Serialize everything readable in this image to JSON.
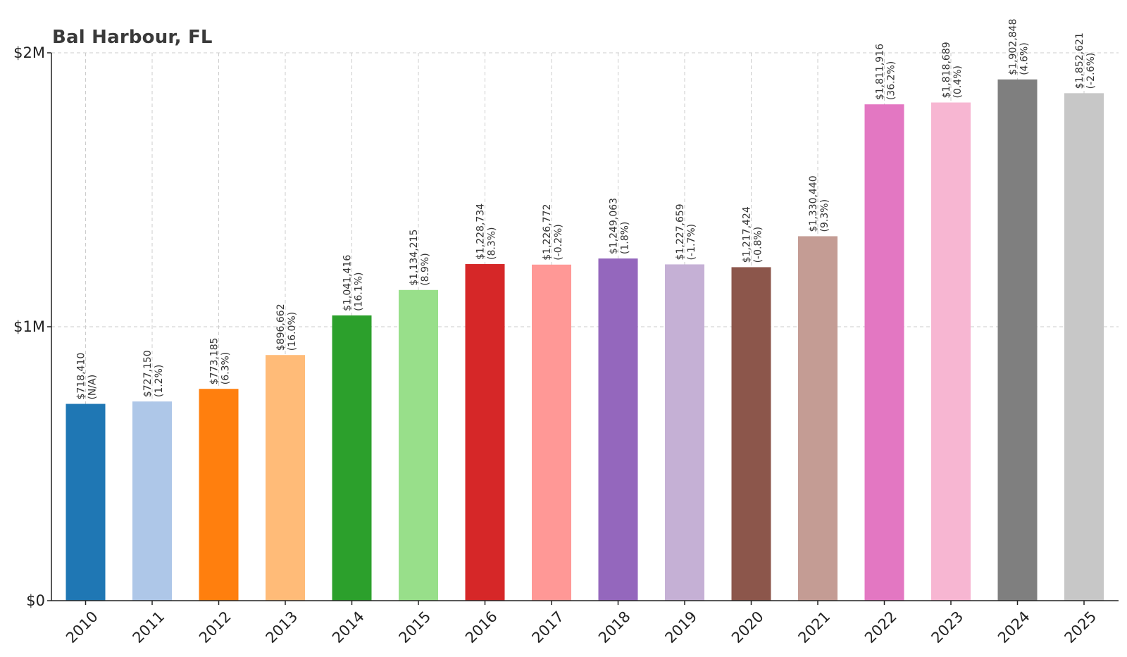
{
  "chart_data": {
    "type": "bar",
    "title": "Bal Harbour, FL",
    "xlabel": "",
    "ylabel": "",
    "ylim": [
      0,
      2000000
    ],
    "yticks": [
      {
        "value": 0,
        "label": "$0"
      },
      {
        "value": 1000000,
        "label": "$1M"
      },
      {
        "value": 2000000,
        "label": "$2M"
      }
    ],
    "grid": true,
    "categories": [
      "2010",
      "2011",
      "2012",
      "2013",
      "2014",
      "2015",
      "2016",
      "2017",
      "2018",
      "2019",
      "2020",
      "2021",
      "2022",
      "2023",
      "2024",
      "2025"
    ],
    "values": [
      718410,
      727150,
      773185,
      896662,
      1041416,
      1134215,
      1228734,
      1226772,
      1249063,
      1227659,
      1217424,
      1330440,
      1811916,
      1818689,
      1902848,
      1852621
    ],
    "value_labels": [
      "$718,410",
      "$727,150",
      "$773,185",
      "$896,662",
      "$1,041,416",
      "$1,134,215",
      "$1,228,734",
      "$1,226,772",
      "$1,249,063",
      "$1,227,659",
      "$1,217,424",
      "$1,330,440",
      "$1,811,916",
      "$1,818,689",
      "$1,902,848",
      "$1,852,621"
    ],
    "change_labels": [
      "(N/A)",
      "(1.2%)",
      "(6.3%)",
      "(16.0%)",
      "(16.1%)",
      "(8.9%)",
      "(8.3%)",
      "(-0.2%)",
      "(1.8%)",
      "(-1.7%)",
      "(-0.8%)",
      "(9.3%)",
      "(36.2%)",
      "(0.4%)",
      "(4.6%)",
      "(-2.6%)"
    ],
    "colors": [
      "#1f77b4",
      "#aec7e8",
      "#ff7f0e",
      "#ffbb78",
      "#2ca02c",
      "#98df8a",
      "#d62728",
      "#ff9896",
      "#9467bd",
      "#c5b0d5",
      "#8c564b",
      "#c49c94",
      "#e377c2",
      "#f7b6d2",
      "#7f7f7f",
      "#c7c7c7"
    ]
  }
}
